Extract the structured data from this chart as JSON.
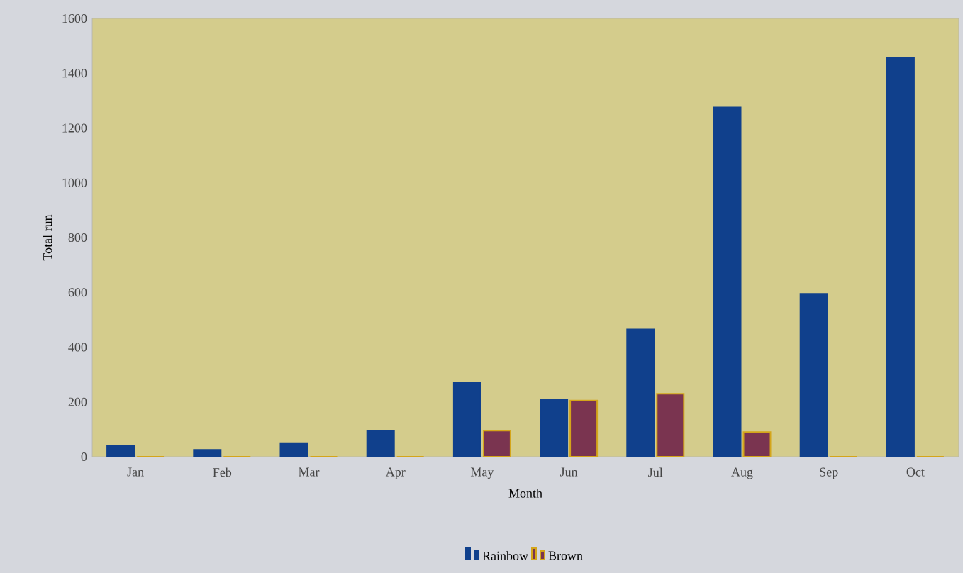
{
  "chart_data": {
    "type": "bar",
    "xlabel": "Month",
    "ylabel": "Total run",
    "categories": [
      "Jan",
      "Feb",
      "Mar",
      "Apr",
      "May",
      "Jun",
      "Jul",
      "Aug",
      "Sep",
      "Oct"
    ],
    "series": [
      {
        "name": "Rainbow",
        "color": "#10408c",
        "values": [
          40,
          25,
          50,
          95,
          270,
          210,
          465,
          1275,
          595,
          1455
        ]
      },
      {
        "name": "Brown",
        "color": "#7a3450",
        "values": [
          0,
          0,
          0,
          0,
          95,
          205,
          230,
          90,
          0,
          0
        ]
      }
    ],
    "ylim": [
      0,
      1600
    ],
    "yticks": [
      0,
      200,
      400,
      600,
      800,
      1000,
      1200,
      1400,
      1600
    ],
    "grid": false,
    "legend": "bottom"
  }
}
